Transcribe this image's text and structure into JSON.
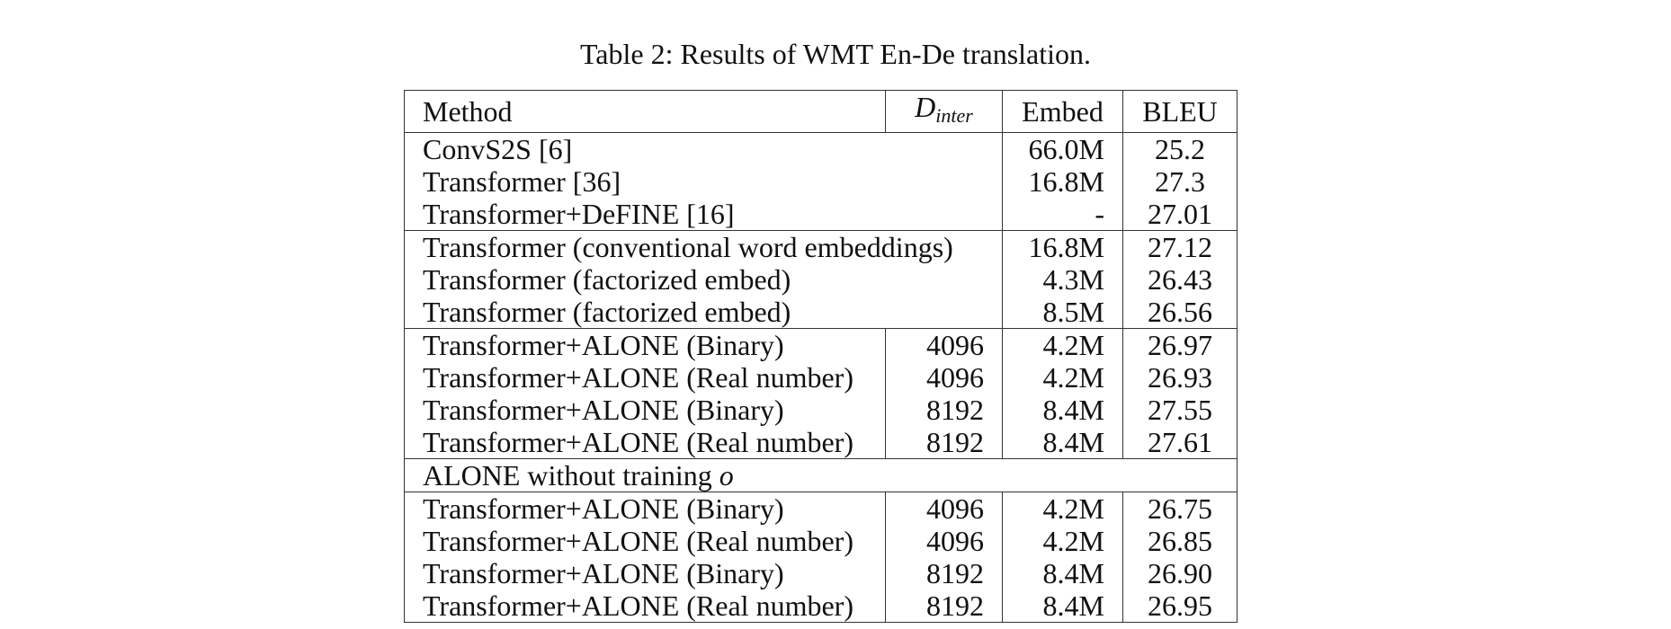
{
  "caption": "Table 2: Results of WMT En-De translation.",
  "headers": {
    "method": "Method",
    "dinter_symbol": "D",
    "dinter_subscript": "inter",
    "embed": "Embed",
    "bleu": "BLEU"
  },
  "baselines": [
    {
      "method": "ConvS2S [6]",
      "embed": "66.0M",
      "bleu": "25.2"
    },
    {
      "method": "Transformer [36]",
      "embed": "16.8M",
      "bleu": "27.3"
    },
    {
      "method": "Transformer+DeFINE [16]",
      "embed": "-",
      "bleu": "27.01"
    }
  ],
  "ours_embed": [
    {
      "method": "Transformer (conventional word embeddings)",
      "embed": "16.8M",
      "bleu": "27.12"
    },
    {
      "method": "Transformer (factorized embed)",
      "embed": "4.3M",
      "bleu": "26.43"
    },
    {
      "method": "Transformer (factorized embed)",
      "embed": "8.5M",
      "bleu": "26.56"
    }
  ],
  "alone": [
    {
      "method": "Transformer+ALONE (Binary)",
      "dinter": "4096",
      "embed": "4.2M",
      "bleu": "26.97"
    },
    {
      "method": "Transformer+ALONE (Real number)",
      "dinter": "4096",
      "embed": "4.2M",
      "bleu": "26.93"
    },
    {
      "method": "Transformer+ALONE (Binary)",
      "dinter": "8192",
      "embed": "8.4M",
      "bleu": "27.55"
    },
    {
      "method": "Transformer+ALONE (Real number)",
      "dinter": "8192",
      "embed": "8.4M",
      "bleu": "27.61"
    }
  ],
  "no_training_header": {
    "text": "ALONE without training ",
    "symbol": "o"
  },
  "alone_no_training": [
    {
      "method": "Transformer+ALONE (Binary)",
      "dinter": "4096",
      "embed": "4.2M",
      "bleu": "26.75"
    },
    {
      "method": "Transformer+ALONE (Real number)",
      "dinter": "4096",
      "embed": "4.2M",
      "bleu": "26.85"
    },
    {
      "method": "Transformer+ALONE (Binary)",
      "dinter": "8192",
      "embed": "8.4M",
      "bleu": "26.90"
    },
    {
      "method": "Transformer+ALONE (Real number)",
      "dinter": "8192",
      "embed": "8.4M",
      "bleu": "26.95"
    }
  ]
}
